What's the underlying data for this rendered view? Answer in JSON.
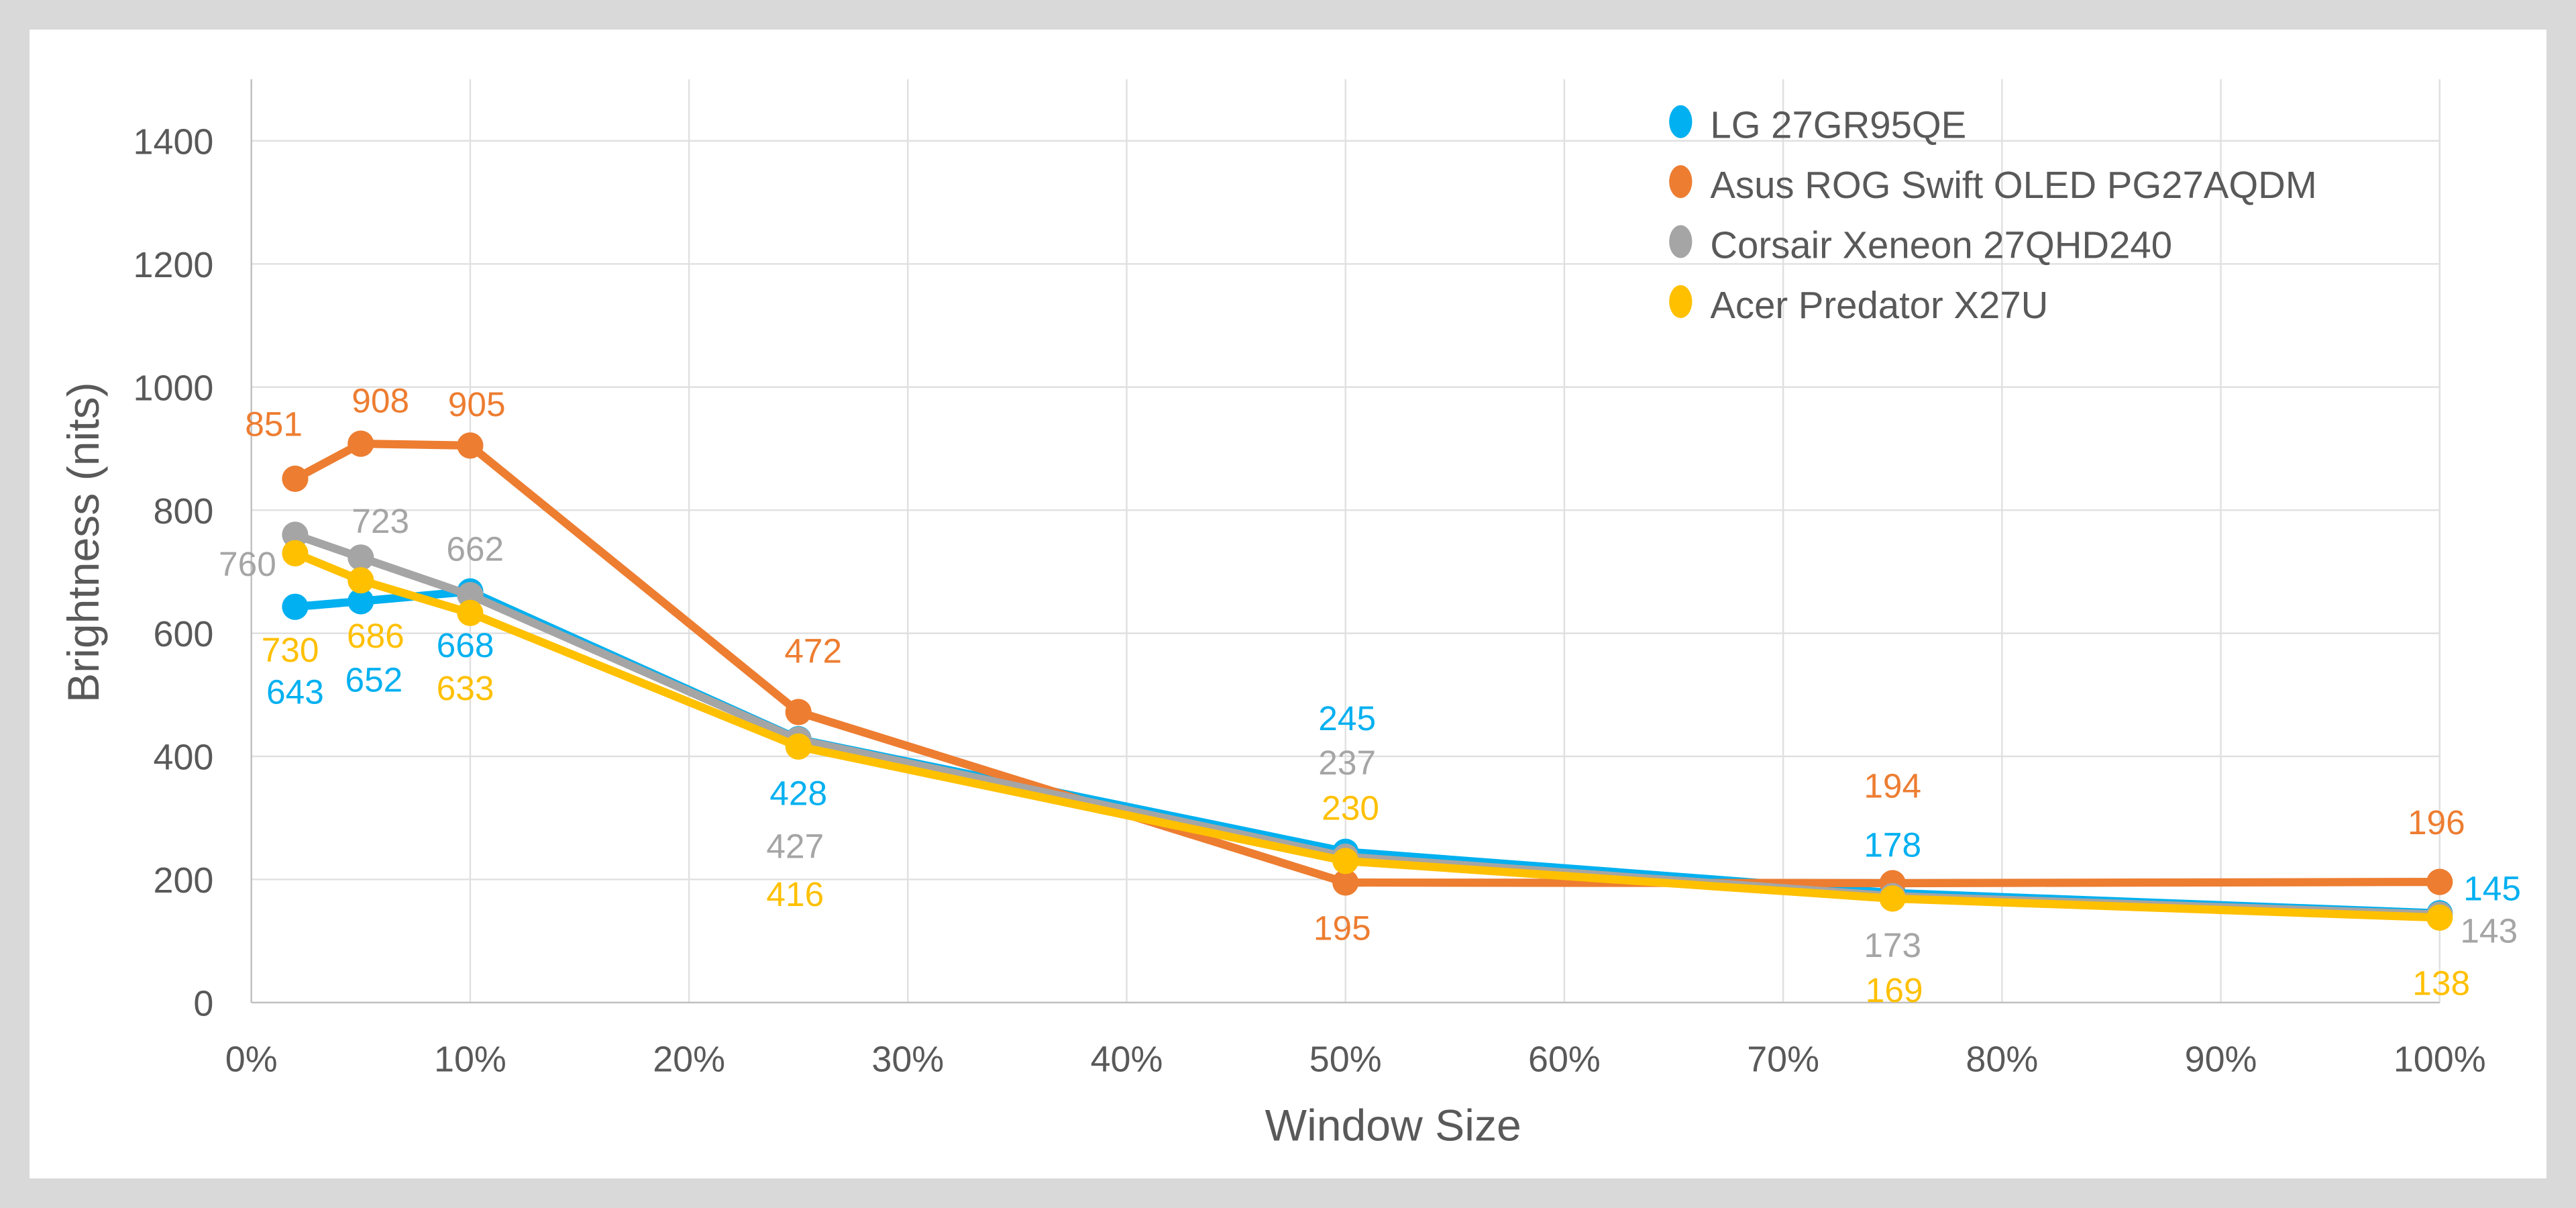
{
  "chart_data": {
    "type": "line",
    "title": "",
    "xlabel": "Window Size",
    "ylabel": "Brightness (nits)",
    "x": [
      2,
      5,
      10,
      25,
      50,
      75,
      100
    ],
    "xlim": [
      0,
      100
    ],
    "ylim": [
      0,
      1500
    ],
    "x_ticks": [
      "0%",
      "10%",
      "20%",
      "30%",
      "40%",
      "50%",
      "60%",
      "70%",
      "80%",
      "90%",
      "100%"
    ],
    "y_ticks": [
      "0",
      "200",
      "400",
      "600",
      "800",
      "1000",
      "1200",
      "1400"
    ],
    "grid": true,
    "legend_position": "top-right",
    "series": [
      {
        "name": "LG 27GR95QE",
        "color": "#00B0F0",
        "values": [
          643,
          652,
          668,
          428,
          245,
          178,
          145
        ]
      },
      {
        "name": "Asus ROG Swift OLED PG27AQDM",
        "color": "#ED7D31",
        "values": [
          851,
          908,
          905,
          472,
          195,
          194,
          196
        ]
      },
      {
        "name": "Corsair Xeneon 27QHD240",
        "color": "#A5A5A5",
        "values": [
          760,
          723,
          662,
          427,
          237,
          173,
          143
        ]
      },
      {
        "name": "Acer Predator X27U",
        "color": "#FFC000",
        "values": [
          730,
          686,
          633,
          416,
          230,
          169,
          138
        ]
      }
    ]
  }
}
